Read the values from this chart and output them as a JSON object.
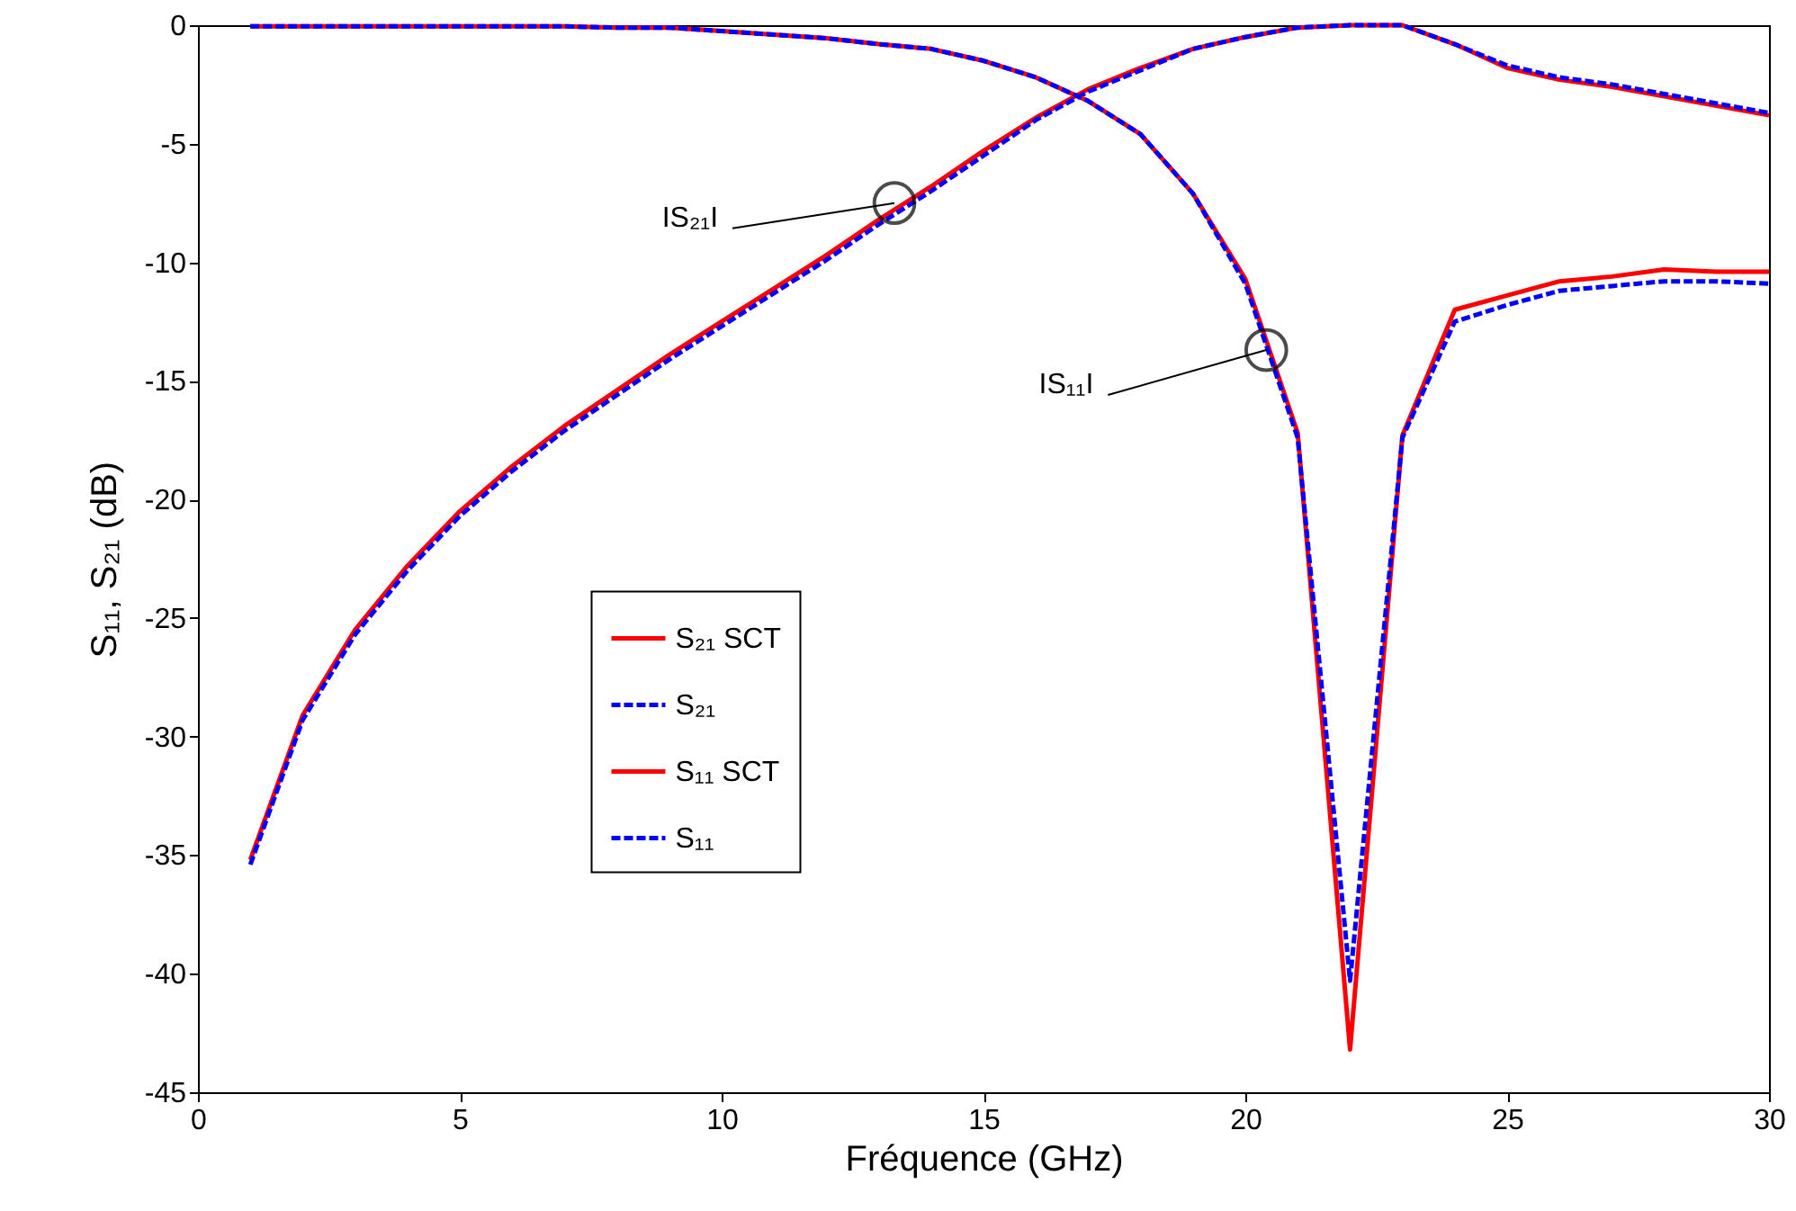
{
  "chart_data": {
    "type": "line",
    "xlabel": "Fréquence (GHz)",
    "ylabel": "S₁₁, S₂₁ (dB)",
    "x": [
      1,
      2,
      3,
      4,
      5,
      6,
      7,
      8,
      9,
      10,
      11,
      12,
      13,
      14,
      15,
      16,
      17,
      18,
      19,
      20,
      21,
      22,
      23,
      24,
      25,
      26,
      27,
      28,
      29,
      30
    ],
    "xlim": [
      0,
      30
    ],
    "xticks": [
      0,
      5,
      10,
      15,
      20,
      25,
      30
    ],
    "ylim": [
      -45,
      0
    ],
    "yticks": [
      -45,
      -40,
      -35,
      -30,
      -25,
      -20,
      -15,
      -10,
      -5,
      0
    ],
    "grid": false,
    "legend": "left",
    "marker": "none",
    "series": [
      {
        "name": "S₂₁ SCT",
        "color": "#ff0000",
        "line_style": "solid",
        "values": [
          -35.2,
          -29.1,
          -25.5,
          -22.8,
          -20.5,
          -18.6,
          -16.9,
          -15.4,
          -13.9,
          -12.5,
          -11.1,
          -9.7,
          -8.2,
          -6.8,
          -5.3,
          -3.9,
          -2.7,
          -1.8,
          -1.0,
          -0.5,
          -0.1,
          0,
          0,
          -0.8,
          -1.8,
          -2.3,
          -2.6,
          -3.0,
          -3.4,
          -3.8
        ]
      },
      {
        "name": "S₂₁",
        "color": "#0000ff",
        "line_style": "dashed",
        "values": [
          -35.4,
          -29.3,
          -25.7,
          -23.0,
          -20.7,
          -18.8,
          -17.1,
          -15.6,
          -14.1,
          -12.7,
          -11.3,
          -9.9,
          -8.4,
          -7.0,
          -5.5,
          -4.0,
          -2.8,
          -1.9,
          -1.0,
          -0.5,
          -0.1,
          0,
          0,
          -0.8,
          -1.7,
          -2.2,
          -2.5,
          -2.9,
          -3.3,
          -3.7
        ]
      },
      {
        "name": "S₁₁ SCT",
        "color": "#ff0000",
        "line_style": "solid",
        "values": [
          -0.05,
          -0.05,
          -0.05,
          -0.05,
          -0.05,
          -0.05,
          -0.05,
          -0.1,
          -0.1,
          -0.25,
          -0.4,
          -0.55,
          -0.8,
          -1.0,
          -1.5,
          -2.2,
          -3.2,
          -4.6,
          -7.1,
          -10.7,
          -17.2,
          -43.2,
          -17.3,
          -12.0,
          -11.4,
          -10.8,
          -10.6,
          -10.3,
          -10.4,
          -10.4
        ]
      },
      {
        "name": "S₁₁",
        "color": "#0000ff",
        "line_style": "dashed",
        "values": [
          -0.05,
          -0.05,
          -0.05,
          -0.05,
          -0.05,
          -0.05,
          -0.05,
          -0.1,
          -0.1,
          -0.25,
          -0.4,
          -0.55,
          -0.8,
          -1.0,
          -1.5,
          -2.2,
          -3.2,
          -4.6,
          -7.1,
          -10.9,
          -17.4,
          -40.3,
          -17.4,
          -12.5,
          -11.8,
          -11.2,
          -11.0,
          -10.8,
          -10.8,
          -10.9
        ]
      }
    ],
    "annotations": [
      {
        "text": "IS₂₁I",
        "x": 13.3,
        "y": -7.5
      },
      {
        "text": "IS₁₁I",
        "x": 20.4,
        "y": -13.7
      }
    ]
  }
}
